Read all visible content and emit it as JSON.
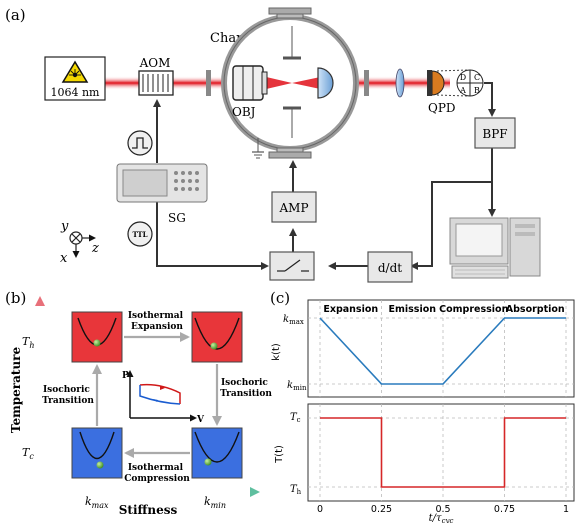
{
  "panel_a": {
    "label": "(a)",
    "laser": {
      "label": "1064 nm"
    },
    "aom": "AOM",
    "chamber": "Chamber",
    "obj": "OBJ",
    "qpd": "QPD",
    "qpd_quadrants": [
      "D",
      "C",
      "A",
      "B"
    ],
    "bpf": "BPF",
    "sg": "SG",
    "amp": "AMP",
    "ddt": "d/dt",
    "ttl": "TTL",
    "axes": {
      "y": "y",
      "x": "x",
      "z": "z"
    }
  },
  "panel_b": {
    "label": "(b)",
    "top_arrow": [
      "Isothermal",
      "Expansion"
    ],
    "bottom_arrow": [
      "Isothermal",
      "Compression"
    ],
    "left_arrow": [
      "Isochoric",
      "Transition"
    ],
    "right_arrow": [
      "Isochoric",
      "Transition"
    ],
    "ylabel": "Temperature",
    "xlabel": "Stiffness",
    "th": "T",
    "th_sub": "h",
    "tc": "T",
    "tc_sub": "c",
    "kmax": "k",
    "kmax_sub": "max",
    "kmin": "k",
    "kmin_sub": "min",
    "pv_p": "P",
    "pv_v": "V",
    "hot_color": "#e8363a",
    "cold_color": "#3b6fe0"
  },
  "panel_c": {
    "label": "(c)",
    "stages": [
      "Expansion",
      "Emission",
      "Compression",
      "Absorption"
    ],
    "top_ylabel": "k(t)",
    "top_kmax": "k",
    "top_kmax_sub": "max",
    "top_kmin": "k",
    "top_kmin_sub": "min",
    "bottom_ylabel": "T(t)",
    "bot_tc": "T",
    "bot_tc_sub": "c",
    "bot_th": "T",
    "bot_th_sub": "h",
    "xlabel": "t/τ",
    "xlabel_sub": "cyc",
    "xticks": [
      "0",
      "0.25",
      "0.5",
      "0.75",
      "1"
    ]
  },
  "chart_data": [
    {
      "type": "line",
      "ylabel": "k(t)",
      "x": [
        0,
        0.25,
        0.5,
        0.75,
        1
      ],
      "series": [
        {
          "values": [
            1,
            0,
            0,
            1,
            1
          ]
        }
      ],
      "color": "#2a7bbd"
    },
    {
      "type": "line",
      "ylabel": "T(t)",
      "x": [
        0,
        0.25,
        0.25,
        0.75,
        0.75,
        1
      ],
      "series": [
        {
          "values": [
            1,
            1,
            0,
            0,
            1,
            1
          ]
        }
      ],
      "color": "#d62728"
    }
  ]
}
